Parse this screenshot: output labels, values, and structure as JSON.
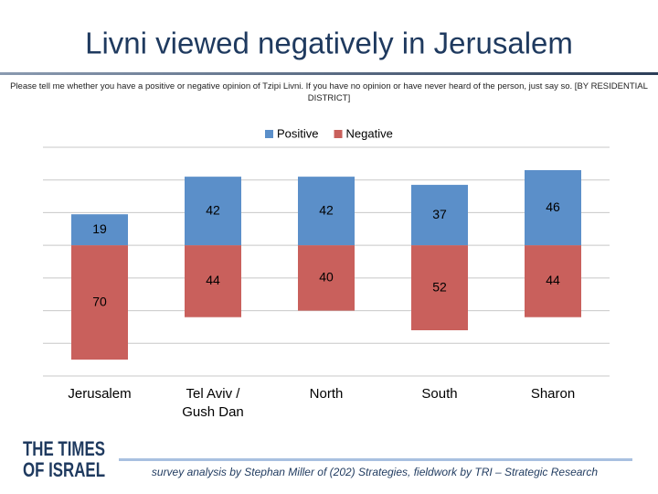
{
  "chart_data": {
    "type": "diverging_bar",
    "title": "Livni viewed negatively in Jerusalem",
    "subtitle": "Please tell me whether you have a positive or negative opinion of Tzipi Livni. If you have no opinion or have never heard of the person, just say so. [BY RESIDENTIAL DISTRICT]",
    "categories": [
      "Jerusalem",
      "Tel Aviv / Gush Dan",
      "North",
      "South",
      "Sharon"
    ],
    "series": [
      {
        "name": "Positive",
        "color": "#5b8fc9",
        "values": [
          19,
          42,
          42,
          37,
          46
        ]
      },
      {
        "name": "Negative",
        "color": "#c9605c",
        "values": [
          -70,
          -44,
          -40,
          -52,
          -44
        ],
        "value_labels": [
          "70",
          "44",
          "40",
          "52",
          "44"
        ]
      }
    ],
    "ylim": [
      -80,
      60
    ],
    "gridlines": [
      -80,
      -60,
      -40,
      -20,
      0,
      20,
      40,
      60
    ],
    "legend": "top",
    "footer": "survey analysis by Stephan Miller of (202) Strategies, fieldwork by TRI – Strategic Research",
    "logo": [
      "THE TIMES",
      "OF ISRAEL"
    ]
  }
}
